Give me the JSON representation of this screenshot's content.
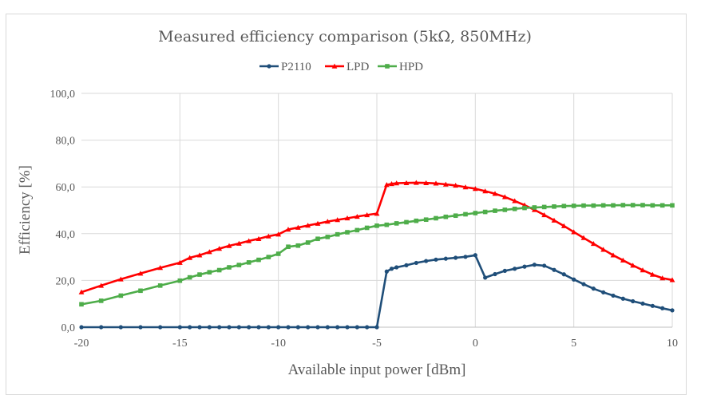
{
  "chart_data": {
    "type": "line",
    "title": "Measured efficiency comparison (5kΩ, 850MHz)",
    "xlabel": "Available input power [dBm]",
    "ylabel": "Efficiency [%]",
    "xlim": [
      -20,
      10
    ],
    "ylim": [
      0,
      100
    ],
    "x_ticks": [
      -20,
      -15,
      -10,
      -5,
      0,
      5,
      10
    ],
    "x_tick_labels": [
      "-20",
      "-15",
      "-10",
      "-5",
      "0",
      "5",
      "10"
    ],
    "y_ticks": [
      0,
      20,
      40,
      60,
      80,
      100
    ],
    "y_tick_labels": [
      "0,0",
      "20,0",
      "40,0",
      "60,0",
      "80,0",
      "100,0"
    ],
    "grid": "vertical-and-horizontal",
    "legend_position": "top-center",
    "series": [
      {
        "name": "P2110",
        "color": "#1f4e79",
        "marker": "circle",
        "x": [
          -20,
          -19,
          -18,
          -17,
          -16,
          -15,
          -14.5,
          -14,
          -13.5,
          -13,
          -12.5,
          -12,
          -11.5,
          -11,
          -10.5,
          -10,
          -9.5,
          -9,
          -8.5,
          -8,
          -7.5,
          -7,
          -6.5,
          -6,
          -5.5,
          -5,
          -4.5,
          -4.25,
          -4,
          -3.5,
          -3,
          -2.5,
          -2,
          -1.5,
          -1,
          -0.5,
          0,
          0.5,
          1,
          1.5,
          2,
          2.5,
          3,
          3.5,
          4,
          4.5,
          5,
          5.5,
          6,
          6.5,
          7,
          7.5,
          8,
          8.5,
          9,
          9.5,
          10
        ],
        "y": [
          0,
          0,
          0,
          0,
          0,
          0,
          0,
          0,
          0,
          0,
          0,
          0,
          0,
          0,
          0,
          0,
          0,
          0,
          0,
          0,
          0,
          0,
          0,
          0,
          0,
          0,
          23.8,
          25.0,
          25.6,
          26.5,
          27.5,
          28.3,
          28.9,
          29.3,
          29.7,
          30.1,
          30.8,
          21.2,
          22.7,
          24.1,
          25.0,
          25.9,
          26.7,
          26.3,
          24.5,
          22.6,
          20.4,
          18.4,
          16.5,
          14.9,
          13.5,
          12.2,
          11.1,
          10.1,
          9.1,
          8.1,
          7.2
        ]
      },
      {
        "name": "LPD",
        "color": "#ff0000",
        "marker": "triangle",
        "x": [
          -20,
          -19,
          -18,
          -17,
          -16,
          -15,
          -14.5,
          -14,
          -13.5,
          -13,
          -12.5,
          -12,
          -11.5,
          -11,
          -10.5,
          -10,
          -9.5,
          -9,
          -8.5,
          -8,
          -7.5,
          -7,
          -6.5,
          -6,
          -5.5,
          -5,
          -4.5,
          -4.25,
          -4,
          -3.5,
          -3,
          -2.5,
          -2,
          -1.5,
          -1,
          -0.5,
          0,
          0.5,
          1,
          1.5,
          2,
          2.5,
          3,
          3.5,
          4,
          4.5,
          5,
          5.5,
          6,
          6.5,
          7,
          7.5,
          8,
          8.5,
          9,
          9.5,
          10
        ],
        "y": [
          15.0,
          17.8,
          20.5,
          23.0,
          25.4,
          27.6,
          29.7,
          30.8,
          32.2,
          33.6,
          34.8,
          35.8,
          36.9,
          37.8,
          38.9,
          39.7,
          41.8,
          42.6,
          43.5,
          44.3,
          45.2,
          45.9,
          46.6,
          47.3,
          48.0,
          48.6,
          60.9,
          61.3,
          61.6,
          61.7,
          61.8,
          61.7,
          61.5,
          61.1,
          60.6,
          59.9,
          59.2,
          58.2,
          57.1,
          55.7,
          54.0,
          52.2,
          50.2,
          48.0,
          45.7,
          43.3,
          40.7,
          38.2,
          35.7,
          33.2,
          30.8,
          28.6,
          26.4,
          24.4,
          22.5,
          21.0,
          20.2
        ]
      },
      {
        "name": "HPD",
        "color": "#4ead4a",
        "marker": "square",
        "x": [
          -20,
          -19,
          -18,
          -17,
          -16,
          -15,
          -14.5,
          -14,
          -13.5,
          -13,
          -12.5,
          -12,
          -11.5,
          -11,
          -10.5,
          -10,
          -9.5,
          -9,
          -8.5,
          -8,
          -7.5,
          -7,
          -6.5,
          -6,
          -5.5,
          -5,
          -4.5,
          -4,
          -3.5,
          -3,
          -2.5,
          -2,
          -1.5,
          -1,
          -0.5,
          0,
          0.5,
          1,
          1.5,
          2,
          2.5,
          3,
          3.5,
          4,
          4.5,
          5,
          5.5,
          6,
          6.5,
          7,
          7.5,
          8,
          8.5,
          9,
          9.5,
          10
        ],
        "y": [
          9.8,
          11.3,
          13.5,
          15.6,
          17.8,
          19.9,
          21.3,
          22.5,
          23.5,
          24.4,
          25.6,
          26.6,
          27.7,
          28.8,
          30.0,
          31.4,
          34.4,
          34.9,
          36.2,
          37.8,
          38.6,
          39.7,
          40.6,
          41.5,
          42.5,
          43.4,
          43.8,
          44.4,
          44.9,
          45.5,
          46.0,
          46.6,
          47.2,
          47.7,
          48.3,
          48.8,
          49.3,
          49.8,
          50.2,
          50.6,
          51.0,
          51.2,
          51.4,
          51.6,
          51.8,
          51.9,
          52.0,
          52.0,
          52.1,
          52.1,
          52.2,
          52.2,
          52.2,
          52.1,
          52.1,
          52.1
        ]
      }
    ]
  }
}
